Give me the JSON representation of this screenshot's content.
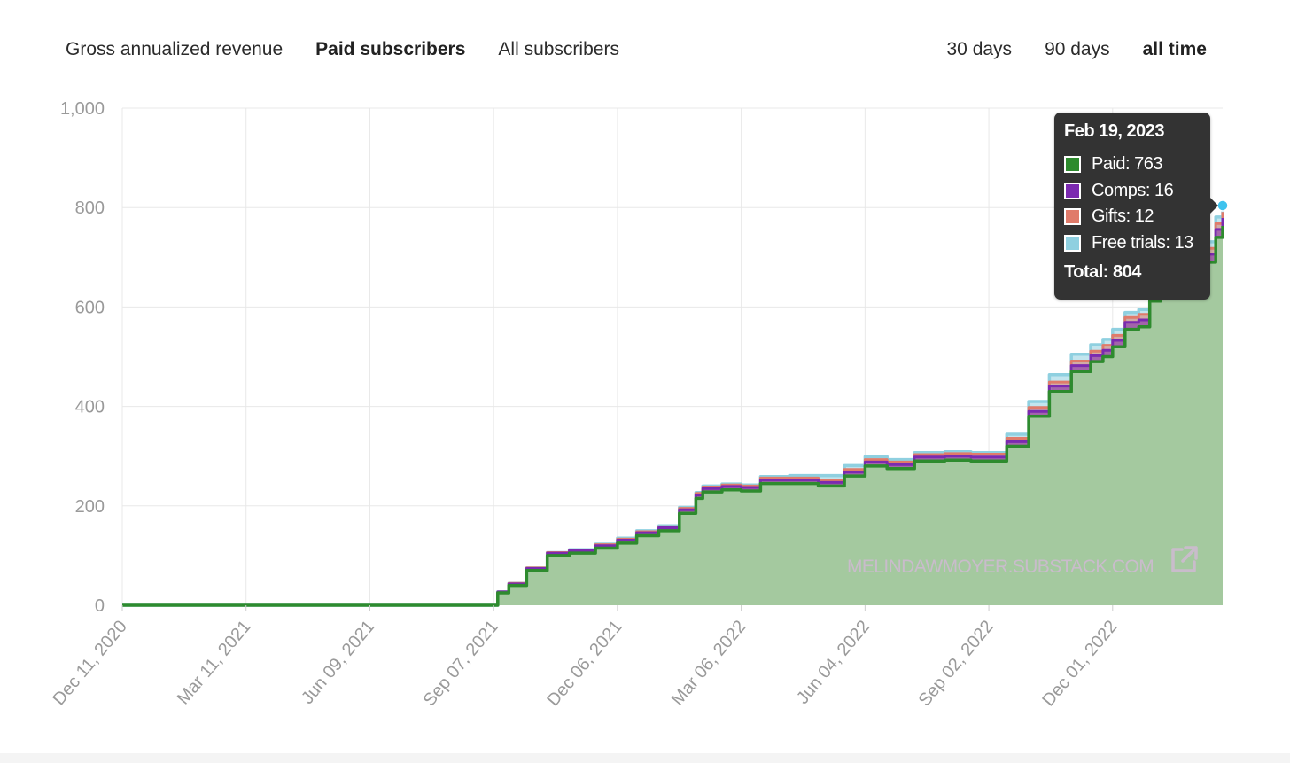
{
  "metric_tabs": [
    {
      "label": "Gross annualized revenue",
      "active": false
    },
    {
      "label": "Paid subscribers",
      "active": true
    },
    {
      "label": "All subscribers",
      "active": false
    }
  ],
  "range_tabs": [
    {
      "label": "30 days",
      "active": false
    },
    {
      "label": "90 days",
      "active": false
    },
    {
      "label": "all time",
      "active": true
    }
  ],
  "tooltip": {
    "date": "Feb 19, 2023",
    "rows": [
      {
        "label": "Paid: 763",
        "color": "#2e8b2e"
      },
      {
        "label": "Comps: 16",
        "color": "#7b2ab0"
      },
      {
        "label": "Gifts: 12",
        "color": "#e07b6a"
      },
      {
        "label": "Free trials: 13",
        "color": "#8fd0e0"
      }
    ],
    "total": "Total: 804"
  },
  "watermark": "MELINDAWMOYER.SUBSTACK.COM",
  "colors": {
    "paid": "#2e8b2e",
    "paid_fill": "#a4c99f",
    "comps": "#7b2ab0",
    "gifts": "#e07b6a",
    "free_trials": "#8fd0e0",
    "gridline": "#e8e8e8",
    "axis_text": "#9a9a9a"
  },
  "chart_data": {
    "type": "area",
    "title": "",
    "xlabel": "",
    "ylabel": "",
    "ylim": [
      0,
      1000
    ],
    "yticks": [
      0,
      200,
      400,
      600,
      800,
      1000
    ],
    "ytick_labels": [
      "0",
      "200",
      "400",
      "600",
      "800",
      "1,000"
    ],
    "xlim": [
      "2020-12-11",
      "2023-02-19"
    ],
    "xticks": [
      "2020-12-11",
      "2021-03-11",
      "2021-06-09",
      "2021-09-07",
      "2021-12-06",
      "2022-03-06",
      "2022-06-04",
      "2022-09-02",
      "2022-12-01"
    ],
    "xtick_labels": [
      "Dec 11, 2020",
      "Mar 11, 2021",
      "Jun 09, 2021",
      "Sep 07, 2021",
      "Dec 06, 2021",
      "Mar 06, 2022",
      "Jun 04, 2022",
      "Sep 02, 2022",
      "Dec 01, 2022"
    ],
    "grid": true,
    "stacked": true,
    "x": [
      "2020-12-11",
      "2021-09-07",
      "2021-09-10",
      "2021-09-18",
      "2021-10-01",
      "2021-10-16",
      "2021-11-01",
      "2021-11-20",
      "2021-12-06",
      "2021-12-20",
      "2022-01-05",
      "2022-01-20",
      "2022-02-01",
      "2022-02-06",
      "2022-02-20",
      "2022-03-06",
      "2022-03-20",
      "2022-04-10",
      "2022-05-01",
      "2022-05-20",
      "2022-06-04",
      "2022-06-20",
      "2022-07-10",
      "2022-08-01",
      "2022-08-20",
      "2022-09-02",
      "2022-09-15",
      "2022-10-01",
      "2022-10-16",
      "2022-11-01",
      "2022-11-15",
      "2022-11-24",
      "2022-12-01",
      "2022-12-10",
      "2022-12-20",
      "2022-12-28",
      "2023-01-05",
      "2023-01-20",
      "2023-02-05",
      "2023-02-14",
      "2023-02-19"
    ],
    "series": [
      {
        "name": "Paid",
        "values": [
          0,
          0,
          25,
          40,
          70,
          100,
          105,
          115,
          125,
          140,
          150,
          185,
          215,
          228,
          232,
          230,
          245,
          245,
          240,
          260,
          280,
          275,
          290,
          292,
          290,
          290,
          320,
          380,
          430,
          470,
          490,
          500,
          520,
          555,
          560,
          612,
          640,
          670,
          690,
          740,
          763
        ]
      },
      {
        "name": "Comps",
        "values": [
          0,
          0,
          2,
          3,
          4,
          5,
          5,
          5,
          6,
          6,
          6,
          7,
          7,
          7,
          7,
          7,
          7,
          7,
          7,
          8,
          8,
          8,
          8,
          8,
          8,
          8,
          9,
          10,
          11,
          12,
          12,
          13,
          13,
          14,
          14,
          15,
          15,
          15,
          16,
          16,
          16
        ]
      },
      {
        "name": "Gifts",
        "values": [
          0,
          0,
          0,
          1,
          1,
          1,
          1,
          2,
          2,
          2,
          2,
          3,
          3,
          3,
          3,
          3,
          4,
          4,
          4,
          5,
          5,
          5,
          5,
          5,
          6,
          6,
          7,
          8,
          8,
          9,
          9,
          10,
          10,
          10,
          11,
          11,
          11,
          12,
          12,
          12,
          12
        ]
      },
      {
        "name": "Free trials",
        "values": [
          0,
          0,
          0,
          0,
          0,
          0,
          1,
          1,
          2,
          2,
          2,
          2,
          2,
          2,
          2,
          2,
          3,
          5,
          10,
          8,
          6,
          5,
          4,
          4,
          3,
          3,
          8,
          12,
          15,
          14,
          13,
          12,
          12,
          10,
          10,
          12,
          12,
          13,
          13,
          13,
          13
        ]
      }
    ]
  }
}
